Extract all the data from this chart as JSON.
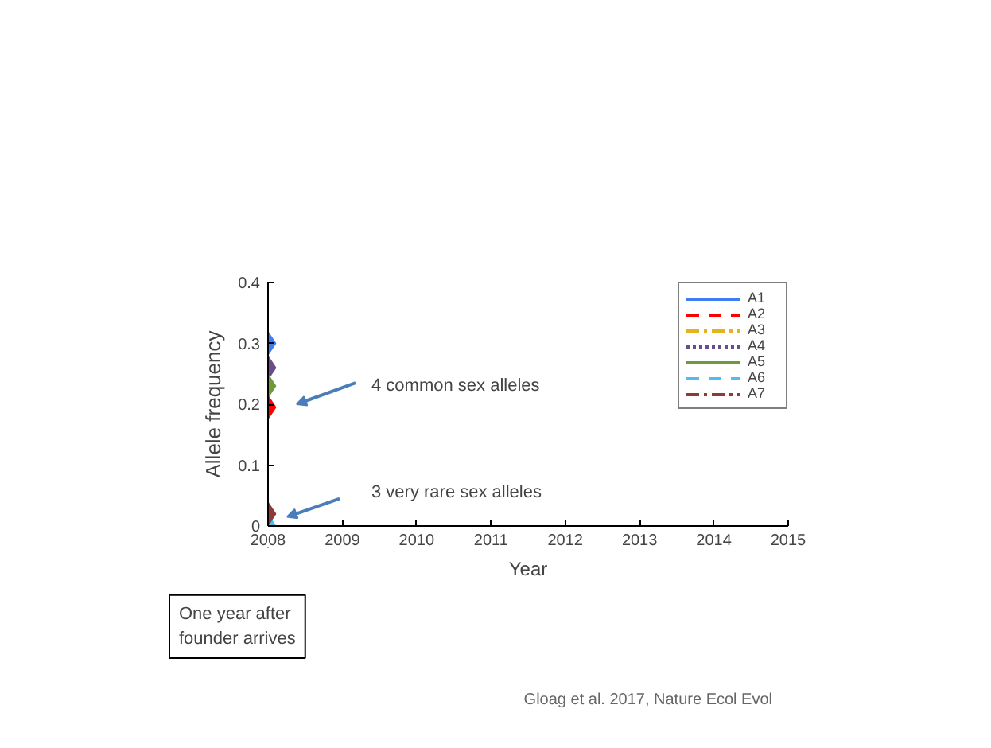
{
  "chart_data": {
    "type": "scatter",
    "xlabel": "Year",
    "ylabel": "Allele frequency",
    "x": [
      2008
    ],
    "series": [
      {
        "name": "A1",
        "color": "#3d7ef5",
        "values": [
          0.3
        ],
        "line_style": "solid"
      },
      {
        "name": "A2",
        "color": "#ff0000",
        "values": [
          0.195
        ],
        "line_style": "dashed"
      },
      {
        "name": "A3",
        "color": "#e8b120",
        "values": [
          null
        ],
        "line_style": "dashdot"
      },
      {
        "name": "A4",
        "color": "#6a4e8c",
        "values": [
          0.26
        ],
        "line_style": "dotted"
      },
      {
        "name": "A5",
        "color": "#6e9a3c",
        "values": [
          0.23
        ],
        "line_style": "solid"
      },
      {
        "name": "A6",
        "color": "#4dbeee",
        "values": [
          0.0
        ],
        "line_style": "dashed"
      },
      {
        "name": "A7",
        "color": "#8c3a3a",
        "values": [
          0.02
        ],
        "line_style": "dashdot"
      }
    ],
    "marker": "diamond",
    "xlim": [
      2008,
      2015
    ],
    "xticks": [
      2008,
      2009,
      2010,
      2011,
      2012,
      2013,
      2014,
      2015
    ],
    "ylim": [
      0,
      0.4
    ],
    "yticks": [
      0,
      0.1,
      0.2,
      0.3,
      0.4
    ],
    "legend": "top right",
    "annotations": [
      "4 common sex alleles",
      "3 very rare sex alleles",
      "One year after founder arrives",
      "Gloag et al. 2017, Nature Ecol Evol"
    ]
  }
}
